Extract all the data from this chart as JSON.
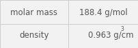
{
  "rows": [
    {
      "label": "molar mass",
      "value": "188.4 g/mol",
      "value_base": null,
      "superscript": null
    },
    {
      "label": "density",
      "value": null,
      "value_base": "0.963 g/cm",
      "superscript": "3"
    }
  ],
  "bg_color": "#f2f2f2",
  "cell_bg": "#f8f8f8",
  "border_color": "#cccccc",
  "text_color": "#555555",
  "font_size": 8.5,
  "col_split": 0.495
}
